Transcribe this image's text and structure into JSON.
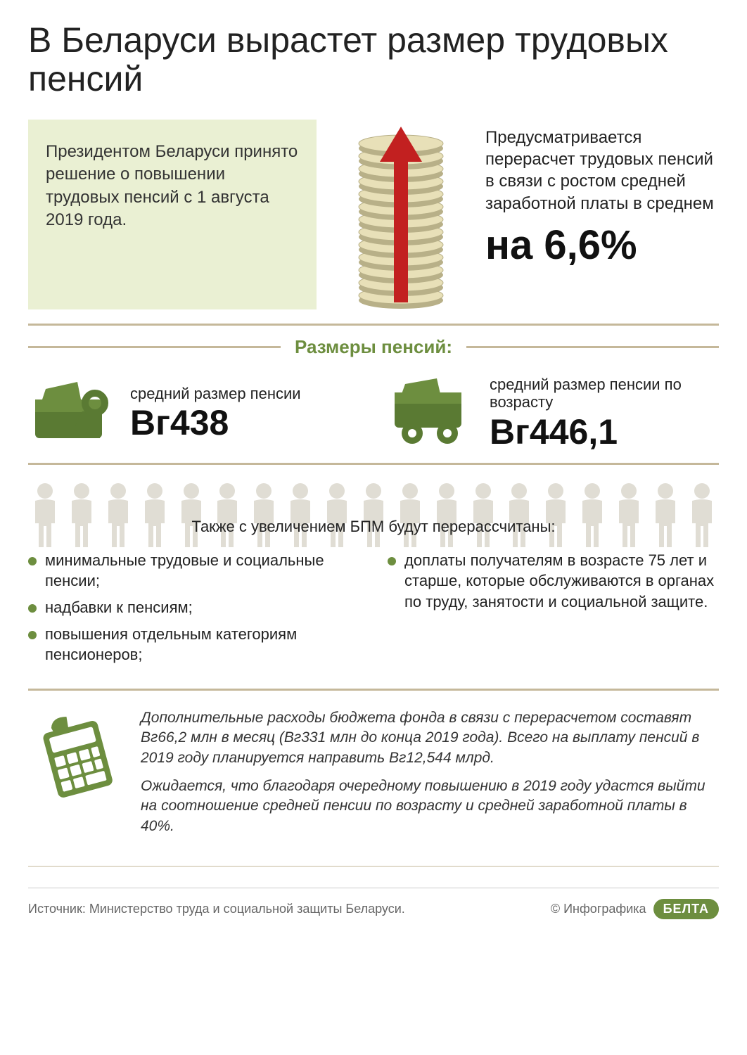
{
  "colors": {
    "accent_green": "#6d8e3f",
    "accent_dark_green": "#5a7a33",
    "box_bg": "#eaf0d3",
    "divider": "#c5b89a",
    "arrow_red": "#c22020",
    "coin_light": "#e8e0b8",
    "coin_dark": "#b8b088",
    "people_gray": "#e0ddd4",
    "text_dark": "#222222",
    "text_muted": "#666666",
    "footer_line": "#cccccc"
  },
  "title": "В Беларуси вырастет размер трудовых пенсий",
  "intro_box": "Президентом Беларуси принято решение о повышении трудовых пенсий с 1 августа 2019 года.",
  "increase": {
    "desc": "Предусматривается перерасчет трудовых пенсий в связи с ростом средней заработной платы в среднем",
    "value": "на 6,6%"
  },
  "sizes_header": "Размеры пенсий:",
  "sizes": [
    {
      "label": "средний размер пенсии",
      "value": "Вг438"
    },
    {
      "label": "средний размер пенсии по возрасту",
      "value": "Вг446,1"
    }
  ],
  "people_count": 19,
  "people_label": "Также с увеличением БПМ будут перерассчитаны:",
  "bullets_left": [
    "минимальные трудовые и социальные пенсии;",
    "надбавки к пенсиям;",
    "повышения отдельным категориям пенсионеров;"
  ],
  "bullets_right": [
    "доплаты получателям в возрасте 75 лет и старше, которые обслуживаются в органах по труду, занятости и социальной защите."
  ],
  "italic_paragraphs": [
    "Дополнительные расходы бюджета фонда в связи с перерасчетом составят Вг66,2 млн в месяц (Вг331 млн до конца 2019 года). Всего на выплату пенсий в 2019 году планируется направить Вг12,544 млрд.",
    "Ожидается, что благодаря очередному повышению в 2019 году удастся выйти на соотношение средней пенсии по возрасту и средней заработной платы в 40%."
  ],
  "footer": {
    "source": "Источник: Министерство труда и социальной защиты Беларуси.",
    "credit": "© Инфографика",
    "logo": "БЕЛТА"
  }
}
